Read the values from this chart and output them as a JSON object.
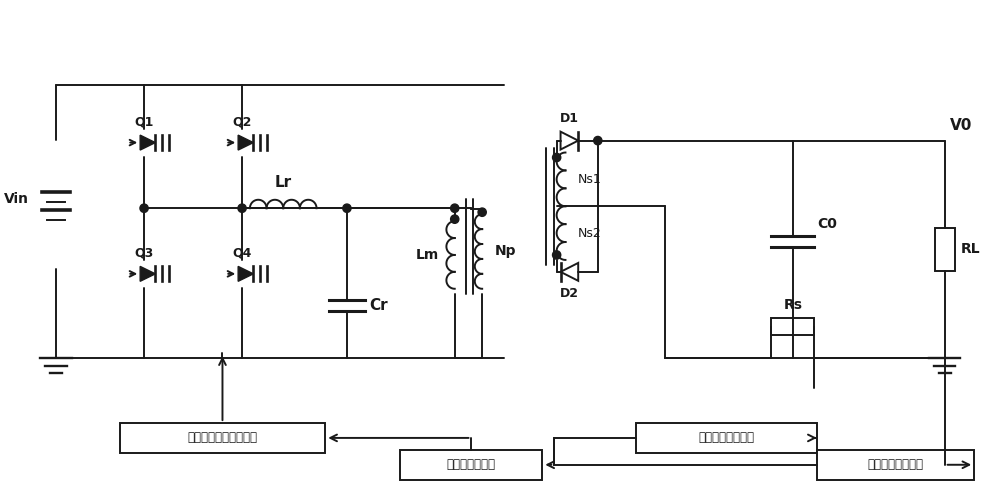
{
  "bg_color": "#ffffff",
  "line_color": "#1a1a1a",
  "line_width": 1.4,
  "fig_width": 10.0,
  "fig_height": 4.94,
  "labels": {
    "Vin": "Vin",
    "Q1": "Q1",
    "Q2": "Q2",
    "Q3": "Q3",
    "Q4": "Q4",
    "Lr": "Lr",
    "Lm": "Lm",
    "Cr": "Cr",
    "Np": "Np",
    "Ns1": "Ns1",
    "Ns2": "Ns2",
    "D1": "D1",
    "D2": "D2",
    "C0": "C0",
    "Rs": "Rs",
    "RL": "RL",
    "V0": "V0",
    "box1": "原边驱动信号隔离电路",
    "box2": "数字信号处理器",
    "box3": "电流采样电路处理",
    "box4": "电压采样电路处理"
  }
}
